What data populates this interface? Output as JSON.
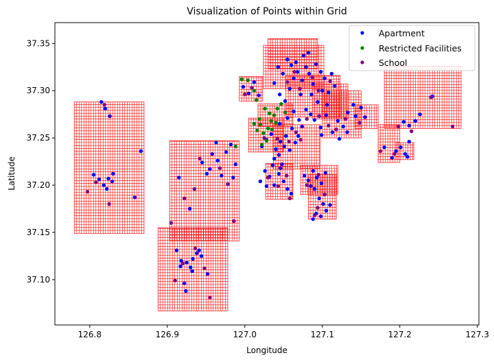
{
  "chart_data": {
    "type": "scatter",
    "title": "Visualization of Points within Grid",
    "xlabel": "Longitude",
    "ylabel": "Latitude",
    "xlim": [
      126.755,
      127.302
    ],
    "ylim": [
      37.052,
      37.372
    ],
    "xticks": [
      126.8,
      126.9,
      127.0,
      127.1,
      127.2,
      127.3
    ],
    "xtick_labels": [
      "126.8",
      "126.9",
      "127.0",
      "127.1",
      "127.2",
      "127.3"
    ],
    "yticks": [
      37.1,
      37.15,
      37.2,
      37.25,
      37.3,
      37.35
    ],
    "ytick_labels": [
      "37.10",
      "37.15",
      "37.20",
      "37.25",
      "37.30",
      "37.35"
    ],
    "grid_color": "#ff0000",
    "grid_cells": [
      {
        "x0": 126.78,
        "x1": 126.87,
        "y0": 37.149,
        "y1": 37.288
      },
      {
        "x0": 126.888,
        "x1": 126.978,
        "y0": 37.067,
        "y1": 37.155
      },
      {
        "x0": 126.903,
        "x1": 126.993,
        "y0": 37.141,
        "y1": 37.247
      },
      {
        "x0": 126.993,
        "x1": 127.023,
        "y0": 37.289,
        "y1": 37.315
      },
      {
        "x0": 127.005,
        "x1": 127.05,
        "y0": 37.235,
        "y1": 37.271
      },
      {
        "x0": 127.017,
        "x1": 127.062,
        "y0": 37.262,
        "y1": 37.286
      },
      {
        "x0": 127.03,
        "x1": 127.094,
        "y0": 37.323,
        "y1": 37.355
      },
      {
        "x0": 127.024,
        "x1": 127.102,
        "y0": 37.302,
        "y1": 37.348
      },
      {
        "x0": 127.053,
        "x1": 127.123,
        "y0": 37.272,
        "y1": 37.316
      },
      {
        "x0": 127.037,
        "x1": 127.097,
        "y0": 37.217,
        "y1": 37.264
      },
      {
        "x0": 127.027,
        "x1": 127.062,
        "y0": 37.185,
        "y1": 37.223
      },
      {
        "x0": 127.072,
        "x1": 127.12,
        "y0": 37.19,
        "y1": 37.221
      },
      {
        "x0": 127.087,
        "x1": 127.133,
        "y0": 37.27,
        "y1": 37.307
      },
      {
        "x0": 127.1,
        "x1": 127.15,
        "y0": 37.25,
        "y1": 37.3
      },
      {
        "x0": 127.142,
        "x1": 127.172,
        "y0": 37.26,
        "y1": 37.285
      },
      {
        "x0": 127.18,
        "x1": 127.279,
        "y0": 37.26,
        "y1": 37.326
      },
      {
        "x0": 127.172,
        "x1": 127.2,
        "y0": 37.224,
        "y1": 37.264
      },
      {
        "x0": 127.195,
        "x1": 127.218,
        "y0": 37.227,
        "y1": 37.245
      },
      {
        "x0": 127.082,
        "x1": 127.118,
        "y0": 37.164,
        "y1": 37.211
      }
    ],
    "legend": {
      "placement": "top-right",
      "entries": [
        {
          "label": "Apartment",
          "color": "#0000ff"
        },
        {
          "label": "Restricted Facilities",
          "color": "#008000"
        },
        {
          "label": "School",
          "color": "#800080"
        }
      ]
    },
    "series": [
      {
        "name": "Apartment",
        "color": "#0000ff",
        "points": [
          [
            126.805,
            37.211
          ],
          [
            126.812,
            37.206
          ],
          [
            126.818,
            37.2
          ],
          [
            126.824,
            37.207
          ],
          [
            126.83,
            37.212
          ],
          [
            126.82,
            37.281
          ],
          [
            126.826,
            37.273
          ],
          [
            126.815,
            37.288
          ],
          [
            126.858,
            37.187
          ],
          [
            126.866,
            37.236
          ],
          [
            126.829,
            37.204
          ],
          [
            126.822,
            37.196
          ],
          [
            126.917,
            37.114
          ],
          [
            126.922,
            37.096
          ],
          [
            126.924,
            37.088
          ],
          [
            126.925,
            37.118
          ],
          [
            126.932,
            37.109
          ],
          [
            126.938,
            37.128
          ],
          [
            126.941,
            37.131
          ],
          [
            126.93,
            37.113
          ],
          [
            126.952,
            37.106
          ],
          [
            126.933,
            37.122
          ],
          [
            126.944,
            37.125
          ],
          [
            126.912,
            37.131
          ],
          [
            126.918,
            37.12
          ],
          [
            126.915,
            37.208
          ],
          [
            126.929,
            37.175
          ],
          [
            126.945,
            37.224
          ],
          [
            126.958,
            37.233
          ],
          [
            126.965,
            37.226
          ],
          [
            126.97,
            37.21
          ],
          [
            126.976,
            37.235
          ],
          [
            126.982,
            37.243
          ],
          [
            126.988,
            37.222
          ],
          [
            126.955,
            37.217
          ],
          [
            126.985,
            37.208
          ],
          [
            126.963,
            37.245
          ],
          [
            126.951,
            37.212
          ],
          [
            126.998,
            37.304
          ],
          [
            127.005,
            37.297
          ],
          [
            127.012,
            37.309
          ],
          [
            127.018,
            37.295
          ],
          [
            127.022,
            37.241
          ],
          [
            127.028,
            37.248
          ],
          [
            127.034,
            37.254
          ],
          [
            127.04,
            37.238
          ],
          [
            127.046,
            37.246
          ],
          [
            127.051,
            37.241
          ],
          [
            127.044,
            37.232
          ],
          [
            127.053,
            37.252
          ],
          [
            127.058,
            37.237
          ],
          [
            127.038,
            37.228
          ],
          [
            127.065,
            37.245
          ],
          [
            127.048,
            37.222
          ],
          [
            127.069,
            37.252
          ],
          [
            127.061,
            37.26
          ],
          [
            127.045,
            37.265
          ],
          [
            127.055,
            37.271
          ],
          [
            127.063,
            37.278
          ],
          [
            127.07,
            37.269
          ],
          [
            127.074,
            37.262
          ],
          [
            127.085,
            37.275
          ],
          [
            127.079,
            37.28
          ],
          [
            127.09,
            37.269
          ],
          [
            127.098,
            37.261
          ],
          [
            127.105,
            37.274
          ],
          [
            127.099,
            37.253
          ],
          [
            127.113,
            37.256
          ],
          [
            127.12,
            37.268
          ],
          [
            127.127,
            37.262
          ],
          [
            127.133,
            37.277
          ],
          [
            127.14,
            37.285
          ],
          [
            127.143,
            37.273
          ],
          [
            127.132,
            37.256
          ],
          [
            127.122,
            37.249
          ],
          [
            127.038,
            37.308
          ],
          [
            127.045,
            37.296
          ],
          [
            127.052,
            37.289
          ],
          [
            127.058,
            37.302
          ],
          [
            127.063,
            37.313
          ],
          [
            127.068,
            37.32
          ],
          [
            127.074,
            37.311
          ],
          [
            127.079,
            37.325
          ],
          [
            127.083,
            37.318
          ],
          [
            127.088,
            37.307
          ],
          [
            127.066,
            37.33
          ],
          [
            127.06,
            37.327
          ],
          [
            127.072,
            37.296
          ],
          [
            127.092,
            37.328
          ],
          [
            127.098,
            37.32
          ],
          [
            127.103,
            37.313
          ],
          [
            127.108,
            37.298
          ],
          [
            127.112,
            37.318
          ],
          [
            127.116,
            37.305
          ],
          [
            127.1,
            37.3
          ],
          [
            127.094,
            37.288
          ],
          [
            127.106,
            37.285
          ],
          [
            127.086,
            37.296
          ],
          [
            127.049,
            37.318
          ],
          [
            127.043,
            37.325
          ],
          [
            127.055,
            37.333
          ],
          [
            127.076,
            37.337
          ],
          [
            127.082,
            37.34
          ],
          [
            127.02,
            37.204
          ],
          [
            127.026,
            37.215
          ],
          [
            127.032,
            37.209
          ],
          [
            127.038,
            37.2
          ],
          [
            127.044,
            37.212
          ],
          [
            127.05,
            37.204
          ],
          [
            127.036,
            37.221
          ],
          [
            127.028,
            37.199
          ],
          [
            127.055,
            37.196
          ],
          [
            127.06,
            37.191
          ],
          [
            127.046,
            37.218
          ],
          [
            127.077,
            37.21
          ],
          [
            127.082,
            37.205
          ],
          [
            127.088,
            37.215
          ],
          [
            127.093,
            37.208
          ],
          [
            127.099,
            37.202
          ],
          [
            127.104,
            37.213
          ],
          [
            127.09,
            37.196
          ],
          [
            127.085,
            37.199
          ],
          [
            127.096,
            37.186
          ],
          [
            127.101,
            37.18
          ],
          [
            127.105,
            37.173
          ],
          [
            127.092,
            37.17
          ],
          [
            127.088,
            37.164
          ],
          [
            127.11,
            37.179
          ],
          [
            127.098,
            37.167
          ],
          [
            127.195,
            37.236
          ],
          [
            127.201,
            37.24
          ],
          [
            127.207,
            37.233
          ],
          [
            127.21,
            37.23
          ],
          [
            127.212,
            37.246
          ],
          [
            127.18,
            37.24
          ],
          [
            127.19,
            37.229
          ],
          [
            127.205,
            37.267
          ],
          [
            127.212,
            37.263
          ],
          [
            127.22,
            37.268
          ],
          [
            127.226,
            37.275
          ],
          [
            127.242,
            37.294
          ],
          [
            127.155,
            37.272
          ],
          [
            127.15,
            37.282
          ]
        ]
      },
      {
        "name": "Restricted Facilities",
        "color": "#008000",
        "points": [
          [
            126.996,
            37.312
          ],
          [
            127.004,
            37.311
          ],
          [
            127.012,
            37.3
          ],
          [
            127.015,
            37.29
          ],
          [
            127.012,
            37.265
          ],
          [
            127.016,
            37.258
          ],
          [
            127.02,
            37.264
          ],
          [
            127.024,
            37.255
          ],
          [
            127.028,
            37.247
          ],
          [
            127.022,
            37.243
          ],
          [
            127.03,
            37.26
          ],
          [
            127.034,
            37.268
          ],
          [
            127.038,
            37.274
          ],
          [
            127.042,
            37.281
          ],
          [
            127.047,
            37.286
          ],
          [
            127.026,
            37.281
          ],
          [
            127.032,
            37.276
          ],
          [
            127.019,
            37.27
          ],
          [
            127.035,
            37.259
          ],
          [
            127.04,
            37.266
          ],
          [
            127.052,
            37.277
          ],
          [
            126.988,
            37.241
          ]
        ]
      },
      {
        "name": "School",
        "color": "#800080",
        "points": [
          [
            126.797,
            37.193
          ],
          [
            126.825,
            37.18
          ],
          [
            126.819,
            37.285
          ],
          [
            126.808,
            37.203
          ],
          [
            126.91,
            37.099
          ],
          [
            126.92,
            37.117
          ],
          [
            126.948,
            37.112
          ],
          [
            126.955,
            37.081
          ],
          [
            126.936,
            37.133
          ],
          [
            126.905,
            37.16
          ],
          [
            126.922,
            37.186
          ],
          [
            126.935,
            37.196
          ],
          [
            126.942,
            37.228
          ],
          [
            126.968,
            37.218
          ],
          [
            126.978,
            37.201
          ],
          [
            126.986,
            37.162
          ],
          [
            127.0,
            37.296
          ],
          [
            127.009,
            37.303
          ],
          [
            127.025,
            37.25
          ],
          [
            127.042,
            37.249
          ],
          [
            127.057,
            37.246
          ],
          [
            127.066,
            37.256
          ],
          [
            127.072,
            37.248
          ],
          [
            127.08,
            37.27
          ],
          [
            127.096,
            37.273
          ],
          [
            127.108,
            37.263
          ],
          [
            127.118,
            37.259
          ],
          [
            127.13,
            37.27
          ],
          [
            127.148,
            37.266
          ],
          [
            127.055,
            37.309
          ],
          [
            127.071,
            37.302
          ],
          [
            127.087,
            37.314
          ],
          [
            127.095,
            37.3
          ],
          [
            127.11,
            37.31
          ],
          [
            127.064,
            37.32
          ],
          [
            127.03,
            37.208
          ],
          [
            127.043,
            37.199
          ],
          [
            127.054,
            37.21
          ],
          [
            127.058,
            37.186
          ],
          [
            127.08,
            37.2
          ],
          [
            127.095,
            37.211
          ],
          [
            127.103,
            37.19
          ],
          [
            127.094,
            37.176
          ],
          [
            127.09,
            37.168
          ],
          [
            127.175,
            37.236
          ],
          [
            127.193,
            37.233
          ],
          [
            127.198,
            37.262
          ],
          [
            127.215,
            37.257
          ],
          [
            127.24,
            37.293
          ],
          [
            127.268,
            37.262
          ]
        ]
      }
    ]
  }
}
